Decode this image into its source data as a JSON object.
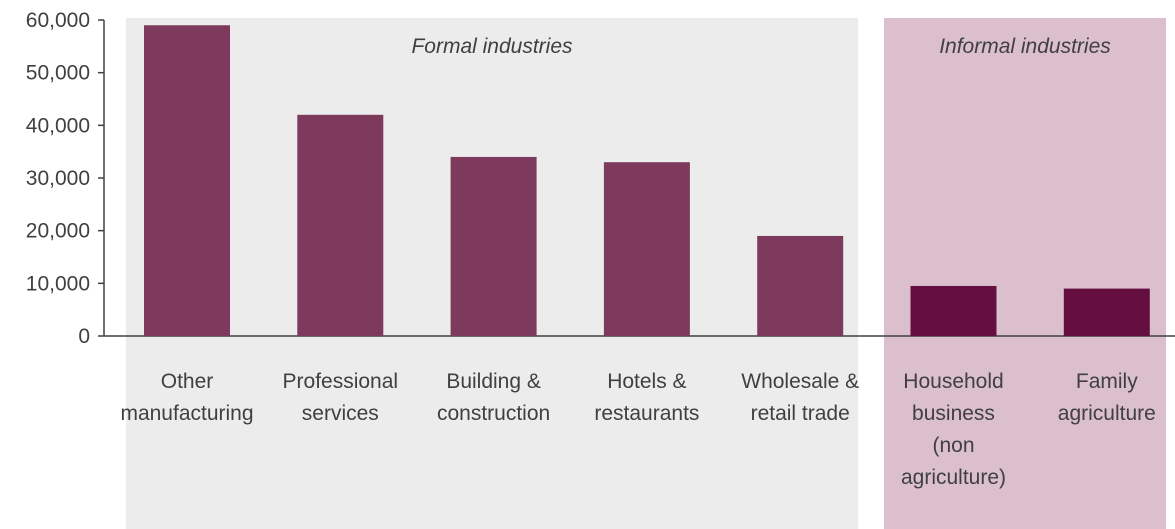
{
  "chart_data": {
    "type": "bar",
    "categories": [
      [
        "Other",
        "manufacturing"
      ],
      [
        "Professional",
        "services"
      ],
      [
        "Building &",
        "construction"
      ],
      [
        "Hotels &",
        "restaurants"
      ],
      [
        "Wholesale &",
        "retail trade"
      ],
      [
        "Household",
        "business",
        "(non",
        "agriculture)"
      ],
      [
        "Family",
        "agriculture"
      ]
    ],
    "values": [
      59000,
      42000,
      34000,
      33000,
      19000,
      9500,
      9000
    ],
    "groups": [
      "formal",
      "formal",
      "formal",
      "formal",
      "formal",
      "informal",
      "informal"
    ],
    "regions": [
      {
        "key": "formal",
        "label": "Formal industries"
      },
      {
        "key": "informal",
        "label": "Informal industries"
      }
    ],
    "ylim": [
      0,
      60000
    ],
    "yticks": [
      "0",
      "10,000",
      "20,000",
      "30,000",
      "40,000",
      "50,000",
      "60,000"
    ],
    "title": "",
    "xlabel": "",
    "ylabel": "",
    "colors": {
      "formal_bar": "#7d3a5c",
      "informal_bar": "#650f40",
      "formal_bg": "#ececec",
      "informal_bg": "#dbbfcc",
      "axis": "#404040"
    }
  }
}
